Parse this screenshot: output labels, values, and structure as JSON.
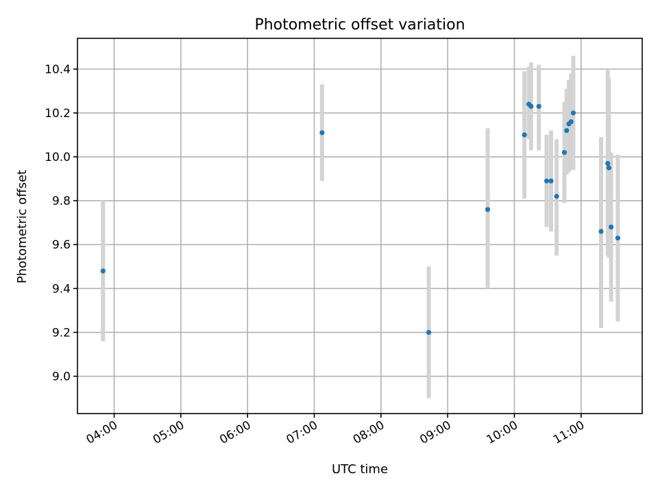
{
  "chart_data": {
    "type": "scatter",
    "title": "Photometric offset variation",
    "xlabel": "UTC time",
    "ylabel": "Photometric offset",
    "x_ticks": [
      "04:00",
      "05:00",
      "06:00",
      "07:00",
      "08:00",
      "09:00",
      "10:00",
      "11:00"
    ],
    "y_ticks": [
      "9.0",
      "9.2",
      "9.4",
      "9.6",
      "9.8",
      "10.0",
      "10.2",
      "10.4"
    ],
    "xlim": [
      "03:27",
      "11:55"
    ],
    "ylim": [
      8.83,
      10.54
    ],
    "grid": true,
    "point_color": "#1f77b4",
    "error_bar_color": "#d3d3d3",
    "series": [
      {
        "points": [
          {
            "x": "03:50",
            "y": 9.48,
            "low": 9.16,
            "high": 9.8
          },
          {
            "x": "07:07",
            "y": 10.11,
            "low": 9.89,
            "high": 10.33
          },
          {
            "x": "08:43",
            "y": 9.2,
            "low": 8.9,
            "high": 9.5
          },
          {
            "x": "09:36",
            "y": 9.76,
            "low": 9.4,
            "high": 10.13
          },
          {
            "x": "10:09",
            "y": 10.1,
            "low": 9.81,
            "high": 10.39
          },
          {
            "x": "10:13",
            "y": 10.24,
            "low": 10.08,
            "high": 10.41
          },
          {
            "x": "10:15",
            "y": 10.23,
            "low": 10.03,
            "high": 10.43
          },
          {
            "x": "10:22",
            "y": 10.23,
            "low": 10.03,
            "high": 10.42
          },
          {
            "x": "10:29",
            "y": 9.89,
            "low": 9.68,
            "high": 10.1
          },
          {
            "x": "10:33",
            "y": 9.89,
            "low": 9.66,
            "high": 10.12
          },
          {
            "x": "10:38",
            "y": 9.82,
            "low": 9.55,
            "high": 10.08
          },
          {
            "x": "10:45",
            "y": 10.02,
            "low": 9.79,
            "high": 10.25
          },
          {
            "x": "10:47",
            "y": 10.12,
            "low": 9.92,
            "high": 10.31
          },
          {
            "x": "10:49",
            "y": 10.15,
            "low": 9.93,
            "high": 10.35
          },
          {
            "x": "10:51",
            "y": 10.16,
            "low": 9.94,
            "high": 10.38
          },
          {
            "x": "10:53",
            "y": 10.2,
            "low": 9.94,
            "high": 10.46
          },
          {
            "x": "11:18",
            "y": 9.66,
            "low": 9.22,
            "high": 10.09
          },
          {
            "x": "11:24",
            "y": 9.97,
            "low": 9.55,
            "high": 10.4
          },
          {
            "x": "11:25",
            "y": 9.95,
            "low": 9.54,
            "high": 10.36
          },
          {
            "x": "11:27",
            "y": 9.68,
            "low": 9.34,
            "high": 10.02
          },
          {
            "x": "11:33",
            "y": 9.63,
            "low": 9.25,
            "high": 10.01
          }
        ]
      }
    ]
  }
}
